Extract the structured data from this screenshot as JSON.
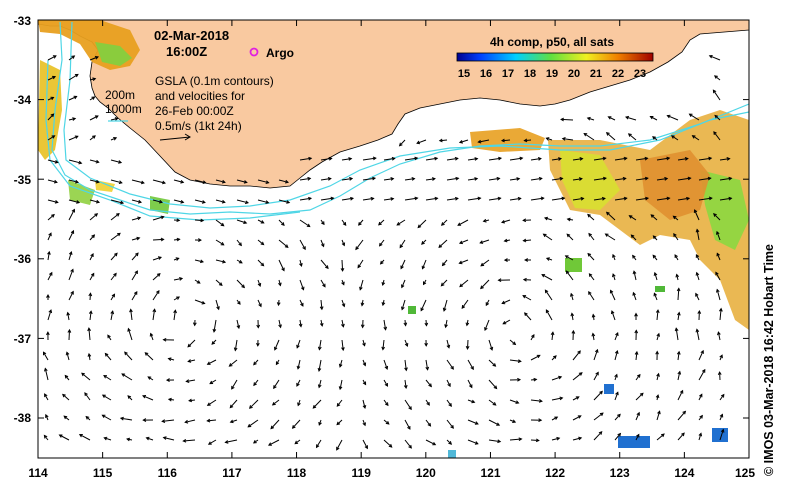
{
  "map": {
    "date": "02-Mar-2018",
    "time": "16:00Z",
    "argo_label": "Argo",
    "depth_labels": [
      "200m",
      "1000m"
    ],
    "gsla_lines": [
      "GSLA (0.1m contours)",
      "and velocities for",
      "26-Feb 00:00Z",
      "0.5m/s (1kt 24h)"
    ],
    "colorbar": {
      "title": "4h comp, p50, all sats",
      "ticks": [
        "15",
        "16",
        "17",
        "18",
        "19",
        "20",
        "21",
        "22",
        "23"
      ]
    },
    "x_axis_ticks": [
      "114",
      "115",
      "116",
      "117",
      "118",
      "119",
      "120",
      "121",
      "122",
      "123",
      "124",
      "125"
    ],
    "y_axis_ticks": [
      "-33",
      "-34",
      "-35",
      "-36",
      "-37",
      "-38"
    ],
    "side_label": "© IMOS 03-Mar-2018 16:42 Hobart Time",
    "colors": {
      "land": "#f9c9a0",
      "contour": "#4fd6e6",
      "argo": "#e020e0",
      "sst_warm": "#e8a020",
      "sst_mid": "#f2e020",
      "sst_cool": "#50c838",
      "sst_cold": "#2070d0"
    }
  }
}
